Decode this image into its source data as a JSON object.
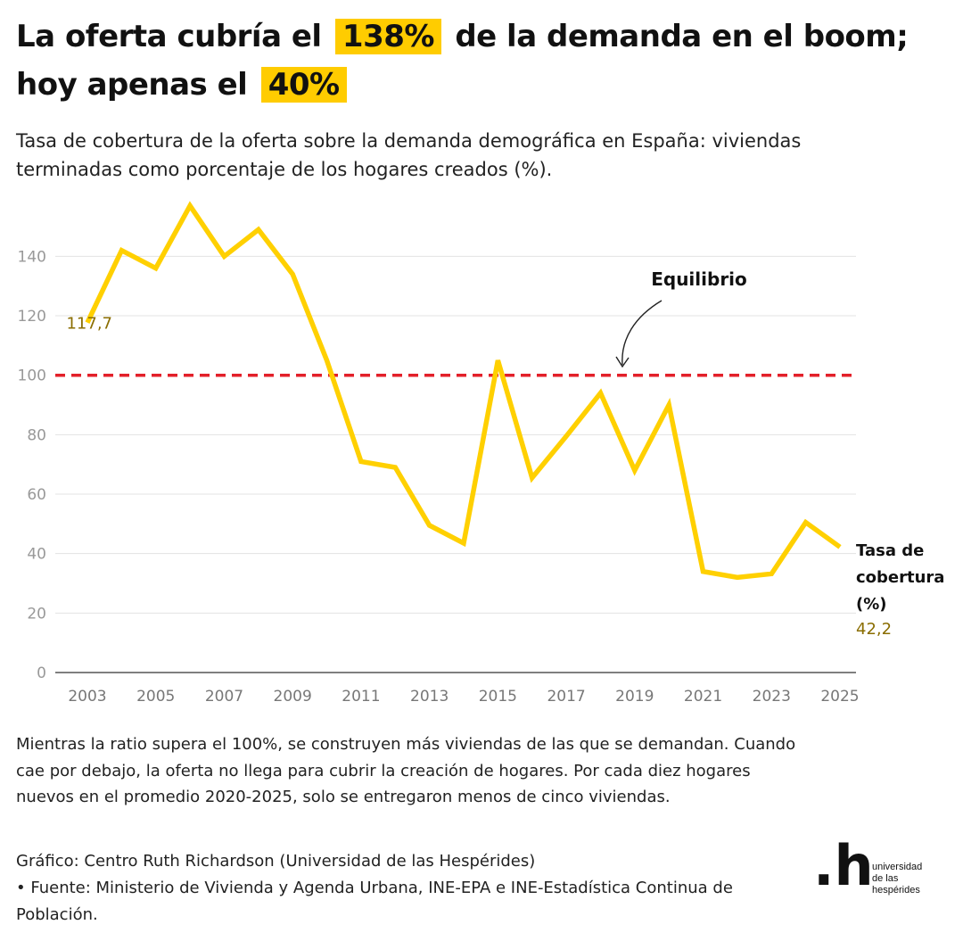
{
  "title": {
    "part1": "La oferta cubría el",
    "highlight1": "138%",
    "part2": "de la demanda en el boom;",
    "part3": "hoy apenas el",
    "highlight2": "40%"
  },
  "subtitle": "Tasa de cobertura de la oferta sobre la demanda demográfica en España: viviendas terminadas como porcentaje de los hogares creados (%).",
  "note": "Mientras la ratio supera el 100%, se construyen más viviendas de las que se demandan. Cuando cae por debajo, la oferta no llega para cubrir la creación de hogares. Por cada diez hogares nuevos en el promedio 2020-2025, solo se entregaron menos de cinco viviendas.",
  "source": {
    "graphic": "Gráfico: Centro Ruth Richardson (Universidad de las Hespérides)",
    "fuente": " • Fuente: Ministerio de Vivienda y Agenda Urbana, INE-EPA e INE-Estadística Continua de Población."
  },
  "logo": {
    "mark": ".h",
    "line1": "universidad",
    "line2": "de las",
    "line3": "hespérides"
  },
  "colors": {
    "line": "#ffd000",
    "highlight": "#ffcc00",
    "reference": "#e3202a",
    "value_label": "#8a6d00",
    "grid": "#e3e3e3",
    "axis_text": "#999999"
  },
  "chart_data": {
    "type": "line",
    "x": [
      2003,
      2004,
      2005,
      2006,
      2007,
      2008,
      2009,
      2010,
      2011,
      2012,
      2013,
      2014,
      2015,
      2016,
      2017,
      2018,
      2019,
      2020,
      2021,
      2022,
      2023,
      2024,
      2025
    ],
    "series": [
      {
        "name": "Tasa de cobertura (%)",
        "values": [
          117.7,
          142,
          136,
          157,
          140,
          149,
          134,
          105,
          71,
          69,
          49.5,
          43.5,
          105,
          65.5,
          79.5,
          94,
          68,
          90,
          34,
          32,
          33.2,
          50.5,
          42.2
        ]
      }
    ],
    "series_label_lines": [
      "Tasa de",
      "cobertura",
      "(%)"
    ],
    "first_value_label": "117,7",
    "last_value_label": "42,2",
    "reference_line": {
      "value": 100,
      "label": "Equilibrio"
    },
    "ylim": [
      0,
      160
    ],
    "yticks": [
      0,
      20,
      40,
      60,
      80,
      100,
      120,
      140
    ],
    "xticks": [
      2003,
      2005,
      2007,
      2009,
      2011,
      2013,
      2015,
      2017,
      2019,
      2021,
      2023,
      2025
    ],
    "xlim": [
      2002,
      2025
    ],
    "grid": true
  }
}
